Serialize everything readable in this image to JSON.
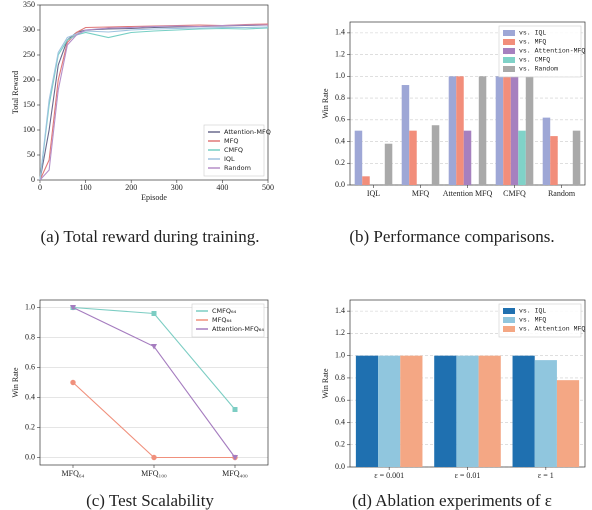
{
  "chart_data": [
    {
      "type": "line",
      "caption": "(a)  Total reward during training.",
      "xlabel": "Episode",
      "ylabel": "Total Reward",
      "x": [
        0,
        20,
        40,
        60,
        80,
        100,
        150,
        200,
        250,
        300,
        350,
        400,
        450,
        500
      ],
      "series": [
        {
          "name": "Attention-MFQ",
          "color": "#6b6a8e",
          "values": [
            0,
            100,
            230,
            280,
            295,
            300,
            302,
            303,
            305,
            306,
            307,
            308,
            309,
            310
          ]
        },
        {
          "name": "MFQ",
          "color": "#e07878",
          "values": [
            0,
            40,
            200,
            275,
            295,
            305,
            306,
            307,
            308,
            309,
            310,
            309,
            311,
            312
          ]
        },
        {
          "name": "CMFQ",
          "color": "#76cfc4",
          "values": [
            0,
            150,
            250,
            280,
            290,
            295,
            285,
            295,
            298,
            300,
            302,
            303,
            302,
            304
          ]
        },
        {
          "name": "IQL",
          "color": "#9fc3e0",
          "values": [
            0,
            160,
            255,
            285,
            292,
            298,
            296,
            300,
            302,
            303,
            304,
            305,
            305,
            306
          ]
        },
        {
          "name": "Random",
          "color": "#b58fc9",
          "values": [
            0,
            20,
            180,
            270,
            290,
            300,
            304,
            305,
            307,
            308,
            307,
            309,
            310,
            310
          ]
        }
      ],
      "xlim": [
        0,
        500
      ],
      "xticks": [
        0,
        100,
        200,
        300,
        400,
        500
      ],
      "ylim": [
        0,
        350
      ],
      "yticks": [
        0,
        50,
        100,
        150,
        200,
        250,
        300,
        350
      ],
      "grid": false,
      "legend": "lower right"
    },
    {
      "type": "bar",
      "caption": "(b)  Performance comparisons.",
      "ylabel": "Win Rate",
      "categories": [
        "IQL",
        "MFQ",
        "Attention MFQ",
        "CMFQ",
        "Random"
      ],
      "series": [
        {
          "name": "vs. IQL",
          "color": "#9ea7d6",
          "values": [
            0.5,
            0.92,
            1.0,
            1.0,
            0.62
          ]
        },
        {
          "name": "vs. MFQ",
          "color": "#f28e7b",
          "values": [
            0.08,
            0.5,
            1.0,
            1.0,
            0.45
          ]
        },
        {
          "name": "vs. Attention-MFQ",
          "color": "#a680bf",
          "values": [
            null,
            null,
            0.5,
            1.0,
            null
          ]
        },
        {
          "name": "vs. CMFQ",
          "color": "#80d2c8",
          "values": [
            null,
            null,
            null,
            0.5,
            null
          ]
        },
        {
          "name": "vs. Random",
          "color": "#a9a9a9",
          "values": [
            0.38,
            0.55,
            1.0,
            1.0,
            0.5
          ]
        }
      ],
      "ylim": [
        0,
        1.5
      ],
      "yticks": [
        {
          "value": 0,
          "label": "0.0"
        },
        0.2,
        0.4,
        0.6,
        0.8,
        {
          "value": 1,
          "label": "1.0"
        },
        1.2,
        1.4
      ],
      "grid": true,
      "legend": "upper right"
    },
    {
      "type": "line",
      "caption": "(c)  Test Scalability",
      "ylabel": "Win Rate",
      "categories": [
        "MFQ₆₄",
        "MFQ₁₀₀",
        "MFQ₄₀₀"
      ],
      "series": [
        {
          "name": "CMFQ₆₄",
          "color": "#7ccdc3",
          "marker": "square",
          "values": [
            1.0,
            0.96,
            0.32
          ]
        },
        {
          "name": "MFQ₆₄",
          "color": "#f0907c",
          "marker": "circle",
          "values": [
            0.5,
            0,
            0
          ]
        },
        {
          "name": "Attention-MFQ₆₄",
          "color": "#a57cbf",
          "marker": "triangle",
          "values": [
            1.0,
            0.74,
            0
          ]
        }
      ],
      "ylim": [
        -0.05,
        1.05
      ],
      "yticks": [
        {
          "value": 0,
          "label": "0.0"
        },
        0.2,
        0.4,
        0.6,
        0.8,
        {
          "value": 1,
          "label": "1.0"
        }
      ],
      "grid": true,
      "legend": "upper right"
    },
    {
      "type": "bar",
      "caption": "(d)  Ablation experiments of ε",
      "ylabel": "Win Rate",
      "categories": [
        "ε = 0.001",
        "ε = 0.01",
        "ε = 1"
      ],
      "series": [
        {
          "name": "vs. IQL",
          "color": "#1f70b0",
          "values": [
            1,
            1,
            1
          ]
        },
        {
          "name": "vs. MFQ",
          "color": "#90c6de",
          "values": [
            1,
            1,
            0.96
          ]
        },
        {
          "name": "vs. Attention MFQ",
          "color": "#f4a784",
          "values": [
            1,
            1,
            0.78
          ]
        }
      ],
      "ylim": [
        0,
        1.5
      ],
      "yticks": [
        {
          "value": 0,
          "label": "0.0"
        },
        0.2,
        0.4,
        0.6,
        0.8,
        {
          "value": 1,
          "label": "1.0"
        },
        1.2,
        1.4
      ],
      "grid": true,
      "legend": "upper right"
    }
  ]
}
